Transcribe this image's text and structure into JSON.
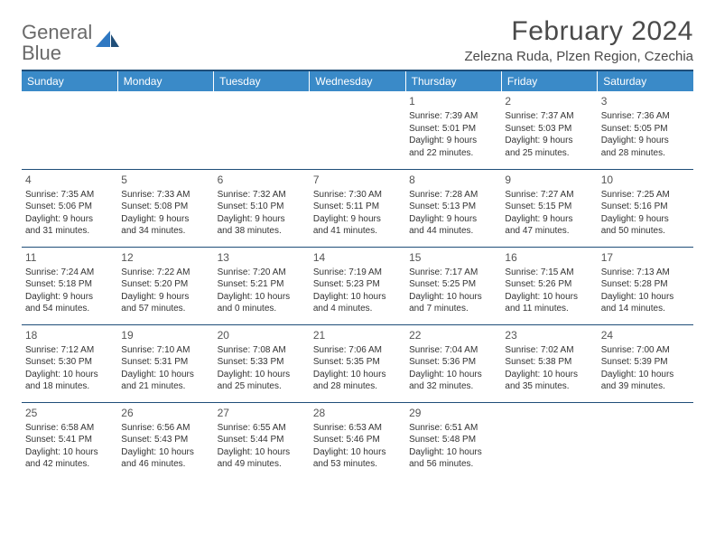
{
  "logo": {
    "line1": "General",
    "line2": "Blue",
    "text_color": "#6a6a6a",
    "accent_color": "#2f78c2"
  },
  "title": "February 2024",
  "subtitle": "Zelezna Ruda, Plzen Region, Czechia",
  "theme": {
    "header_bg": "#3a8ac8",
    "header_text": "#ffffff",
    "rule_color": "#1f4e79",
    "body_text": "#333333",
    "daynum_color": "#555555",
    "page_bg": "#ffffff",
    "title_color": "#4a4a4a"
  },
  "columns": [
    "Sunday",
    "Monday",
    "Tuesday",
    "Wednesday",
    "Thursday",
    "Friday",
    "Saturday"
  ],
  "weeks": [
    [
      null,
      null,
      null,
      null,
      {
        "n": "1",
        "sr": "Sunrise: 7:39 AM",
        "ss": "Sunset: 5:01 PM",
        "dl1": "Daylight: 9 hours",
        "dl2": "and 22 minutes."
      },
      {
        "n": "2",
        "sr": "Sunrise: 7:37 AM",
        "ss": "Sunset: 5:03 PM",
        "dl1": "Daylight: 9 hours",
        "dl2": "and 25 minutes."
      },
      {
        "n": "3",
        "sr": "Sunrise: 7:36 AM",
        "ss": "Sunset: 5:05 PM",
        "dl1": "Daylight: 9 hours",
        "dl2": "and 28 minutes."
      }
    ],
    [
      {
        "n": "4",
        "sr": "Sunrise: 7:35 AM",
        "ss": "Sunset: 5:06 PM",
        "dl1": "Daylight: 9 hours",
        "dl2": "and 31 minutes."
      },
      {
        "n": "5",
        "sr": "Sunrise: 7:33 AM",
        "ss": "Sunset: 5:08 PM",
        "dl1": "Daylight: 9 hours",
        "dl2": "and 34 minutes."
      },
      {
        "n": "6",
        "sr": "Sunrise: 7:32 AM",
        "ss": "Sunset: 5:10 PM",
        "dl1": "Daylight: 9 hours",
        "dl2": "and 38 minutes."
      },
      {
        "n": "7",
        "sr": "Sunrise: 7:30 AM",
        "ss": "Sunset: 5:11 PM",
        "dl1": "Daylight: 9 hours",
        "dl2": "and 41 minutes."
      },
      {
        "n": "8",
        "sr": "Sunrise: 7:28 AM",
        "ss": "Sunset: 5:13 PM",
        "dl1": "Daylight: 9 hours",
        "dl2": "and 44 minutes."
      },
      {
        "n": "9",
        "sr": "Sunrise: 7:27 AM",
        "ss": "Sunset: 5:15 PM",
        "dl1": "Daylight: 9 hours",
        "dl2": "and 47 minutes."
      },
      {
        "n": "10",
        "sr": "Sunrise: 7:25 AM",
        "ss": "Sunset: 5:16 PM",
        "dl1": "Daylight: 9 hours",
        "dl2": "and 50 minutes."
      }
    ],
    [
      {
        "n": "11",
        "sr": "Sunrise: 7:24 AM",
        "ss": "Sunset: 5:18 PM",
        "dl1": "Daylight: 9 hours",
        "dl2": "and 54 minutes."
      },
      {
        "n": "12",
        "sr": "Sunrise: 7:22 AM",
        "ss": "Sunset: 5:20 PM",
        "dl1": "Daylight: 9 hours",
        "dl2": "and 57 minutes."
      },
      {
        "n": "13",
        "sr": "Sunrise: 7:20 AM",
        "ss": "Sunset: 5:21 PM",
        "dl1": "Daylight: 10 hours",
        "dl2": "and 0 minutes."
      },
      {
        "n": "14",
        "sr": "Sunrise: 7:19 AM",
        "ss": "Sunset: 5:23 PM",
        "dl1": "Daylight: 10 hours",
        "dl2": "and 4 minutes."
      },
      {
        "n": "15",
        "sr": "Sunrise: 7:17 AM",
        "ss": "Sunset: 5:25 PM",
        "dl1": "Daylight: 10 hours",
        "dl2": "and 7 minutes."
      },
      {
        "n": "16",
        "sr": "Sunrise: 7:15 AM",
        "ss": "Sunset: 5:26 PM",
        "dl1": "Daylight: 10 hours",
        "dl2": "and 11 minutes."
      },
      {
        "n": "17",
        "sr": "Sunrise: 7:13 AM",
        "ss": "Sunset: 5:28 PM",
        "dl1": "Daylight: 10 hours",
        "dl2": "and 14 minutes."
      }
    ],
    [
      {
        "n": "18",
        "sr": "Sunrise: 7:12 AM",
        "ss": "Sunset: 5:30 PM",
        "dl1": "Daylight: 10 hours",
        "dl2": "and 18 minutes."
      },
      {
        "n": "19",
        "sr": "Sunrise: 7:10 AM",
        "ss": "Sunset: 5:31 PM",
        "dl1": "Daylight: 10 hours",
        "dl2": "and 21 minutes."
      },
      {
        "n": "20",
        "sr": "Sunrise: 7:08 AM",
        "ss": "Sunset: 5:33 PM",
        "dl1": "Daylight: 10 hours",
        "dl2": "and 25 minutes."
      },
      {
        "n": "21",
        "sr": "Sunrise: 7:06 AM",
        "ss": "Sunset: 5:35 PM",
        "dl1": "Daylight: 10 hours",
        "dl2": "and 28 minutes."
      },
      {
        "n": "22",
        "sr": "Sunrise: 7:04 AM",
        "ss": "Sunset: 5:36 PM",
        "dl1": "Daylight: 10 hours",
        "dl2": "and 32 minutes."
      },
      {
        "n": "23",
        "sr": "Sunrise: 7:02 AM",
        "ss": "Sunset: 5:38 PM",
        "dl1": "Daylight: 10 hours",
        "dl2": "and 35 minutes."
      },
      {
        "n": "24",
        "sr": "Sunrise: 7:00 AM",
        "ss": "Sunset: 5:39 PM",
        "dl1": "Daylight: 10 hours",
        "dl2": "and 39 minutes."
      }
    ],
    [
      {
        "n": "25",
        "sr": "Sunrise: 6:58 AM",
        "ss": "Sunset: 5:41 PM",
        "dl1": "Daylight: 10 hours",
        "dl2": "and 42 minutes."
      },
      {
        "n": "26",
        "sr": "Sunrise: 6:56 AM",
        "ss": "Sunset: 5:43 PM",
        "dl1": "Daylight: 10 hours",
        "dl2": "and 46 minutes."
      },
      {
        "n": "27",
        "sr": "Sunrise: 6:55 AM",
        "ss": "Sunset: 5:44 PM",
        "dl1": "Daylight: 10 hours",
        "dl2": "and 49 minutes."
      },
      {
        "n": "28",
        "sr": "Sunrise: 6:53 AM",
        "ss": "Sunset: 5:46 PM",
        "dl1": "Daylight: 10 hours",
        "dl2": "and 53 minutes."
      },
      {
        "n": "29",
        "sr": "Sunrise: 6:51 AM",
        "ss": "Sunset: 5:48 PM",
        "dl1": "Daylight: 10 hours",
        "dl2": "and 56 minutes."
      },
      null,
      null
    ]
  ]
}
